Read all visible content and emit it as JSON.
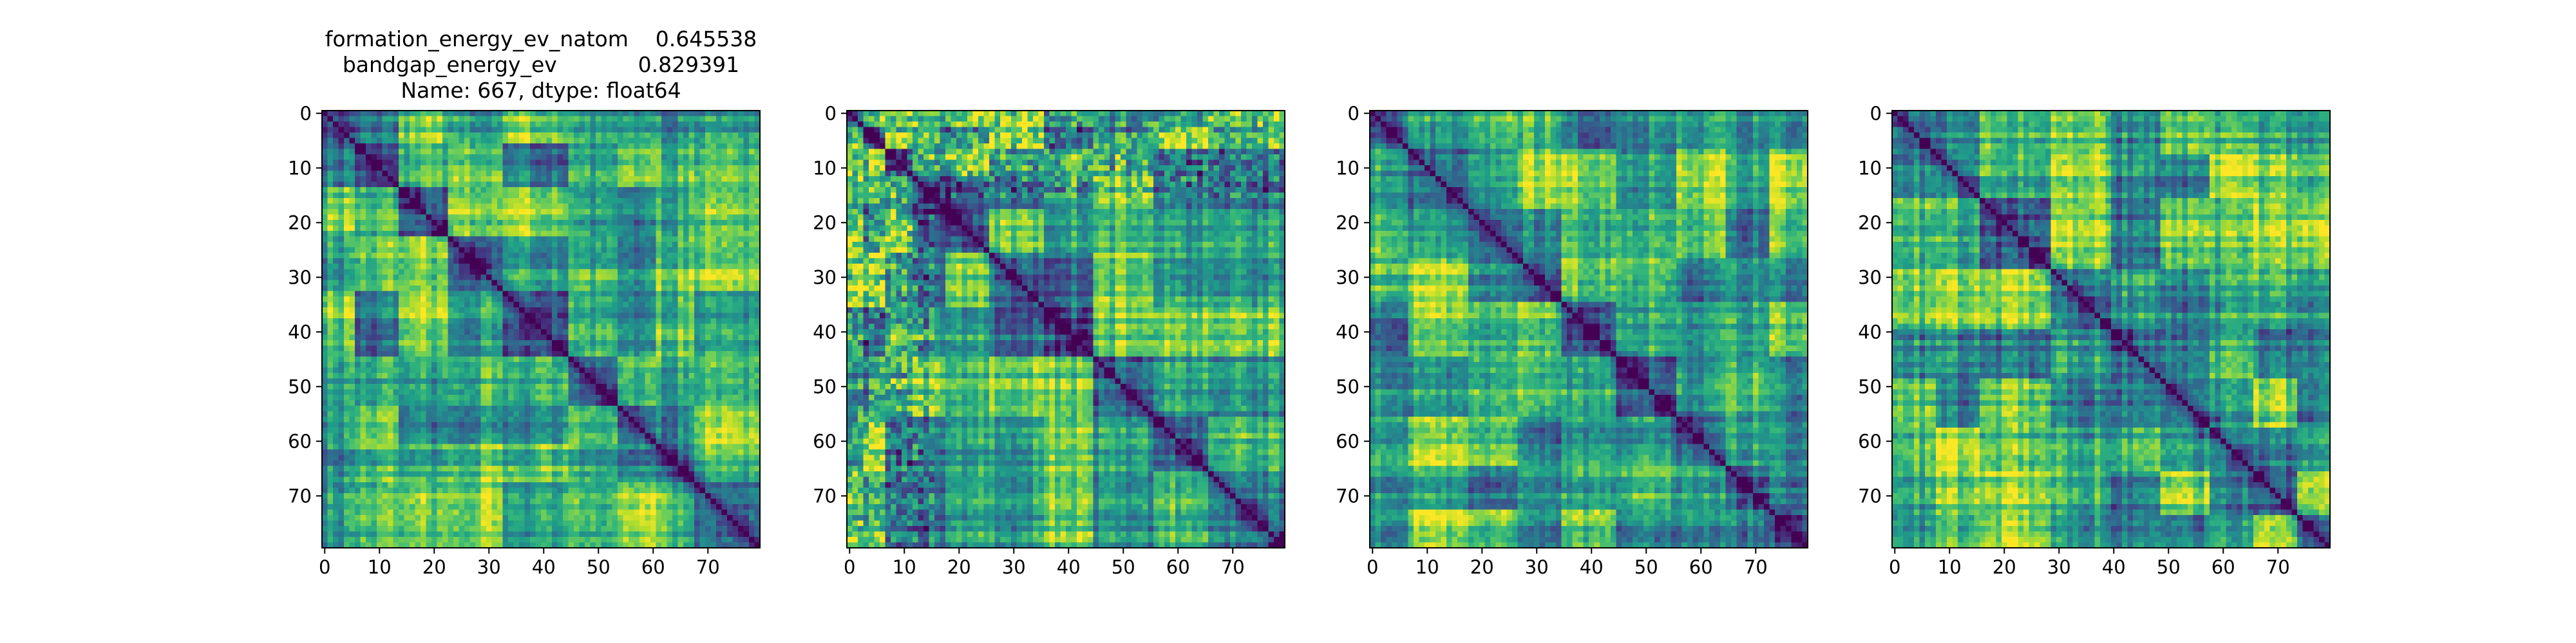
{
  "figure": {
    "background": "#ffffff",
    "colormap": "viridis",
    "colormap_stops": [
      "#440154",
      "#482878",
      "#3e4989",
      "#31688e",
      "#26828e",
      "#1f9e89",
      "#35b779",
      "#6ece58",
      "#b5de2b",
      "#fde725"
    ]
  },
  "chart_data": [
    {
      "type": "heatmap",
      "title_lines": [
        "formation_energy_ev_natom    0.645538",
        "bandgap_energy_ev            0.829391",
        "Name: 667, dtype: float64"
      ],
      "size": 80,
      "x_ticks": [
        0,
        10,
        20,
        30,
        40,
        50,
        60,
        70
      ],
      "y_ticks": [
        0,
        10,
        20,
        30,
        40,
        50,
        60,
        70
      ],
      "xlim": [
        -0.5,
        79.5
      ],
      "ylim": [
        79.5,
        -0.5
      ],
      "diagonal_value": 0,
      "value_range": [
        0,
        1
      ],
      "block_boundaries": [
        0,
        6,
        14,
        23,
        33,
        45,
        54,
        61,
        68,
        80
      ]
    },
    {
      "type": "heatmap",
      "title_lines": [],
      "size": 80,
      "x_ticks": [
        0,
        10,
        20,
        30,
        40,
        50,
        60,
        70
      ],
      "y_ticks": [
        0,
        10,
        20,
        30,
        40,
        50,
        60,
        70
      ],
      "xlim": [
        -0.5,
        79.5
      ],
      "ylim": [
        79.5,
        -0.5
      ],
      "diagonal_value": 0,
      "value_range": [
        0,
        1
      ],
      "block_boundaries": [
        0,
        3,
        7,
        12,
        18,
        26,
        36,
        45,
        56,
        66,
        80
      ]
    },
    {
      "type": "heatmap",
      "title_lines": [],
      "size": 80,
      "x_ticks": [
        0,
        10,
        20,
        30,
        40,
        50,
        60,
        70
      ],
      "y_ticks": [
        0,
        10,
        20,
        30,
        40,
        50,
        60,
        70
      ],
      "xlim": [
        -0.5,
        79.5
      ],
      "ylim": [
        79.5,
        -0.5
      ],
      "diagonal_value": 0,
      "value_range": [
        0,
        1
      ],
      "block_boundaries": [
        0,
        7,
        18,
        27,
        35,
        45,
        56,
        65,
        73,
        80
      ]
    },
    {
      "type": "heatmap",
      "title_lines": [],
      "size": 80,
      "x_ticks": [
        0,
        10,
        20,
        30,
        40,
        50,
        60,
        70
      ],
      "y_ticks": [
        0,
        10,
        20,
        30,
        40,
        50,
        60,
        70
      ],
      "xlim": [
        -0.5,
        79.5
      ],
      "ylim": [
        79.5,
        -0.5
      ],
      "diagonal_value": 0,
      "value_range": [
        0,
        1
      ],
      "block_boundaries": [
        0,
        8,
        16,
        29,
        40,
        49,
        58,
        66,
        74,
        80
      ]
    }
  ]
}
